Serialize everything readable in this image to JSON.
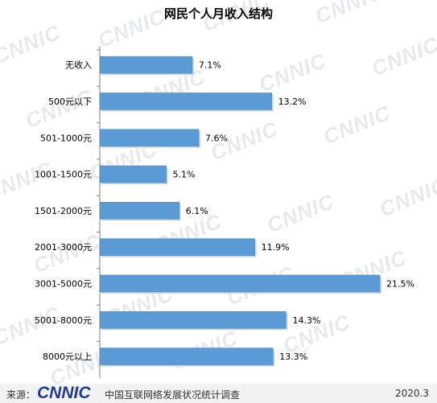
{
  "title": "网民个人月收入结构",
  "watermark_text": "CNNIC",
  "footer": {
    "source_label": "来源：",
    "logo_text": "CNNIC",
    "org": "中国互联网络发展状况统计调查",
    "date": "2020.3"
  },
  "colors": {
    "bar": "#5b9bd5",
    "bar_border": "#4a86c0",
    "axis": "#7f7f7f",
    "footer_bg": "#f2f2f2"
  },
  "chart_data": {
    "type": "bar",
    "orientation": "horizontal",
    "title": "网民个人月收入结构",
    "categories": [
      "无收入",
      "500元以下",
      "501-1000元",
      "1001-1500元",
      "1501-2000元",
      "2001-3000元",
      "3001-5000元",
      "5001-8000元",
      "8000元以上"
    ],
    "values": [
      7.1,
      13.2,
      7.6,
      5.1,
      6.1,
      11.9,
      21.5,
      14.3,
      13.3
    ],
    "value_labels": [
      "7.1%",
      "13.2%",
      "7.6%",
      "5.1%",
      "6.1%",
      "11.9%",
      "21.5%",
      "14.3%",
      "13.3%"
    ],
    "unit": "%",
    "xlim": [
      0,
      21.5
    ],
    "grid": false,
    "legend": "none"
  }
}
